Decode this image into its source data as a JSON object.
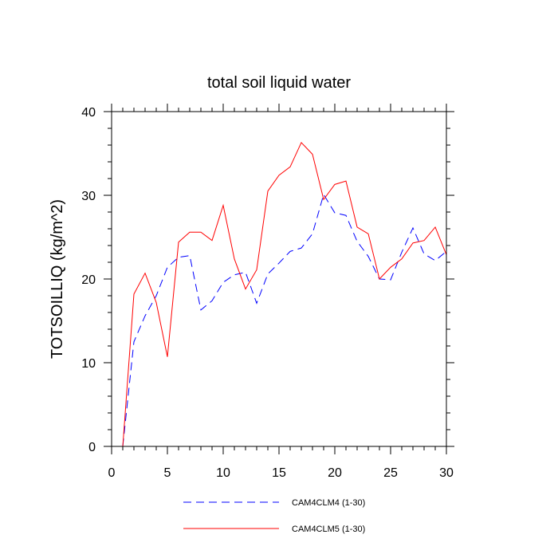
{
  "chart_data": {
    "type": "line",
    "title": "total soil liquid water",
    "xlabel": "",
    "ylabel": "TOTSOILLIQ  (kg/m^2)",
    "xlim": [
      0,
      30
    ],
    "ylim": [
      0,
      40
    ],
    "x_ticks": [
      0,
      5,
      10,
      15,
      20,
      25,
      30
    ],
    "y_ticks": [
      0,
      10,
      20,
      30,
      40
    ],
    "grid": false,
    "legend_position": "bottom",
    "x": [
      1,
      2,
      3,
      4,
      5,
      6,
      7,
      8,
      9,
      10,
      11,
      12,
      13,
      14,
      15,
      16,
      17,
      18,
      19,
      20,
      21,
      22,
      23,
      24,
      25,
      26,
      27,
      28,
      29,
      30
    ],
    "series": [
      {
        "name": "CAM4CLM4 (1-30)",
        "color": "#0000ff",
        "dash": "dashed",
        "values": [
          0,
          12.5,
          15.6,
          18.0,
          21.4,
          22.6,
          22.8,
          16.3,
          17.4,
          19.6,
          20.5,
          20.8,
          17.1,
          20.6,
          21.9,
          23.3,
          23.7,
          25.4,
          30.1,
          27.9,
          27.6,
          24.5,
          22.7,
          20.0,
          19.9,
          23.2,
          26.1,
          23.0,
          22.2,
          23.3
        ]
      },
      {
        "name": "CAM4CLM5 (1-30)",
        "color": "#ff0000",
        "dash": "solid",
        "values": [
          0,
          18.2,
          20.7,
          17.2,
          10.7,
          24.4,
          25.6,
          25.6,
          24.6,
          28.8,
          22.4,
          18.8,
          21.1,
          30.5,
          32.4,
          33.4,
          36.3,
          34.9,
          29.5,
          31.3,
          31.7,
          26.2,
          25.4,
          20.0,
          21.4,
          22.4,
          24.3,
          24.6,
          26.2,
          22.9
        ]
      }
    ]
  }
}
